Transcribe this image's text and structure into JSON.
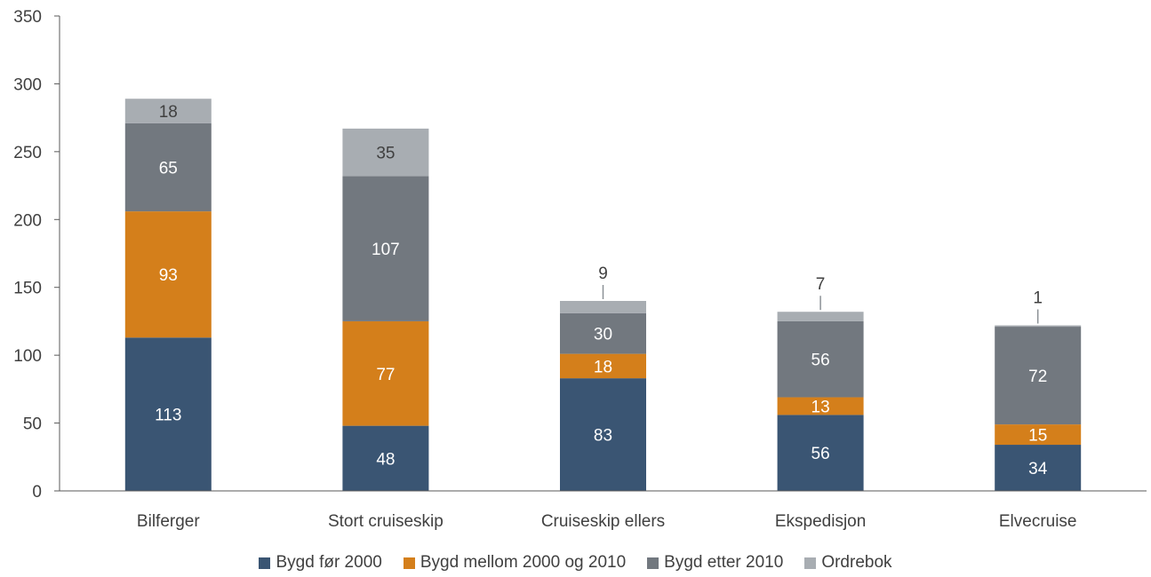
{
  "chart_data": {
    "type": "bar",
    "stacked": true,
    "title": "",
    "xlabel": "",
    "ylabel": "",
    "ylim": [
      0,
      350
    ],
    "yticks": [
      0,
      50,
      100,
      150,
      200,
      250,
      300,
      350
    ],
    "grid": false,
    "legend_position": "bottom",
    "categories": [
      "Bilferger",
      "Stort cruiseskip",
      "Cruiseskip ellers",
      "Ekspedisjon",
      "Elvecruise"
    ],
    "series": [
      {
        "name": "Bygd før 2000",
        "color": "#3a5573",
        "label_color": "#ffffff",
        "values": [
          113,
          48,
          83,
          56,
          34
        ]
      },
      {
        "name": "Bygd mellom 2000 og 2010",
        "color": "#d47f1b",
        "label_color": "#ffffff",
        "values": [
          93,
          77,
          18,
          13,
          15
        ]
      },
      {
        "name": "Bygd etter 2010",
        "color": "#72787f",
        "label_color": "#ffffff",
        "values": [
          65,
          107,
          30,
          56,
          72
        ]
      },
      {
        "name": "Ordrebok",
        "color": "#a8adb2",
        "label_color": "#404040",
        "values": [
          18,
          35,
          9,
          7,
          1
        ]
      }
    ],
    "colors": {
      "axis": "#595959",
      "text": "#404040"
    }
  }
}
